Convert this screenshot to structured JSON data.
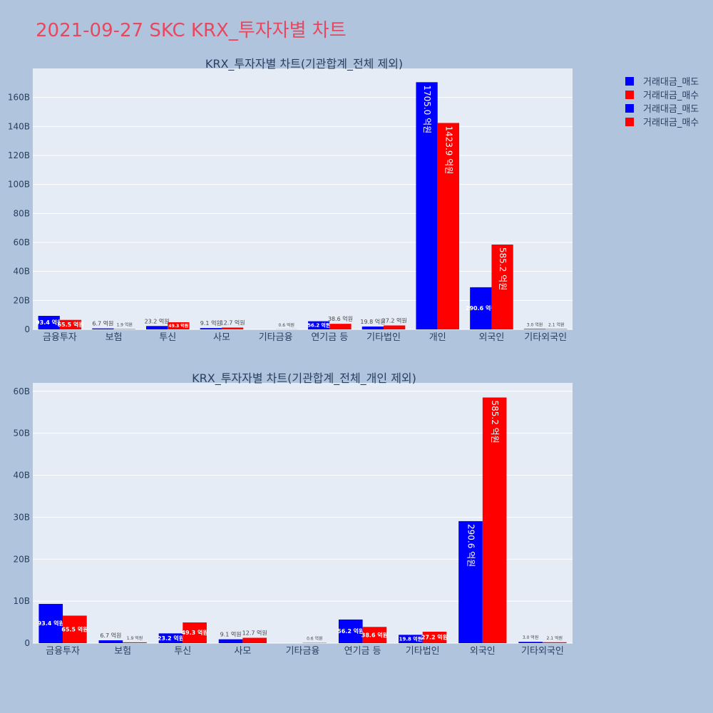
{
  "page_title": "2021-09-27 SKC KRX_투자자별 차트",
  "colors": {
    "sell": "#0000ff",
    "buy": "#ff0000",
    "plot_bg": "#e5ecf6",
    "page_bg": "#b0c4de",
    "title": "#e8485f"
  },
  "legend": {
    "position": "top-right",
    "entries": [
      {
        "label": "거래대금_매도",
        "color": "#0000ff"
      },
      {
        "label": "거래대금_매수",
        "color": "#ff0000"
      },
      {
        "label": "거래대금_매도",
        "color": "#0000ff"
      },
      {
        "label": "거래대금_매수",
        "color": "#ff0000"
      }
    ]
  },
  "chart_data": [
    {
      "type": "bar",
      "title": "KRX_투자자별 차트(기관합계_전체 제외)",
      "categories": [
        "금융투자",
        "보험",
        "투신",
        "사모",
        "기타금융",
        "연기금 등",
        "기타법인",
        "개인",
        "외국인",
        "기타외국인"
      ],
      "ylim": [
        0,
        180
      ],
      "y_ticks": [
        0,
        20,
        40,
        60,
        80,
        100,
        120,
        140,
        160
      ],
      "y_tick_labels": [
        "0",
        "20B",
        "40B",
        "60B",
        "80B",
        "100B",
        "120B",
        "140B",
        "160B"
      ],
      "grid": true,
      "series": [
        {
          "name": "거래대금_매도",
          "color": "#0000ff",
          "values": [
            9.34,
            0.67,
            2.32,
            0.91,
            0,
            5.62,
            1.98,
            170.5,
            29.06,
            0.3
          ],
          "labels": [
            "93.4 억원",
            "6.7 억원",
            "23.2 억원",
            "9.1 억원",
            "",
            "56.2 억원",
            "19.8 억원",
            "1705.0 억원",
            "290.6 억원",
            "3.0 억원"
          ]
        },
        {
          "name": "거래대금_매수",
          "color": "#ff0000",
          "values": [
            6.55,
            0.19,
            4.93,
            1.27,
            0.06,
            3.86,
            2.72,
            142.39,
            58.52,
            0.21
          ],
          "labels": [
            "65.5 억원",
            "1.9 억원",
            "49.3 억원",
            "12.7 억원",
            "0.6 억원",
            "38.6 억원",
            "27.2 억원",
            "1423.9 억원",
            "585.2 억원",
            "2.1 억원"
          ]
        }
      ]
    },
    {
      "type": "bar",
      "title": "KRX_투자자별 차트(기관합계_전체_개인 제외)",
      "categories": [
        "금융투자",
        "보험",
        "투신",
        "사모",
        "기타금융",
        "연기금 등",
        "기타법인",
        "외국인",
        "기타외국인"
      ],
      "ylim": [
        0,
        62
      ],
      "y_ticks": [
        0,
        10,
        20,
        30,
        40,
        50,
        60
      ],
      "y_tick_labels": [
        "0",
        "10B",
        "20B",
        "30B",
        "40B",
        "50B",
        "60B"
      ],
      "grid": true,
      "series": [
        {
          "name": "거래대금_매도",
          "color": "#0000ff",
          "values": [
            9.34,
            0.67,
            2.32,
            0.91,
            0,
            5.62,
            1.98,
            29.06,
            0.3
          ],
          "labels": [
            "93.4 억원",
            "6.7 억원",
            "23.2 억원",
            "9.1 억원",
            "",
            "56.2 억원",
            "19.8 억원",
            "290.6 억원",
            "3.0 억원"
          ]
        },
        {
          "name": "거래대금_매수",
          "color": "#ff0000",
          "values": [
            6.55,
            0.19,
            4.93,
            1.27,
            0.06,
            3.86,
            2.72,
            58.52,
            0.21
          ],
          "labels": [
            "65.5 억원",
            "1.9 억원",
            "49.3 억원",
            "12.7 억원",
            "0.6 억원",
            "38.6 억원",
            "27.2 억원",
            "585.2 억원",
            "2.1 억원"
          ]
        }
      ]
    }
  ]
}
